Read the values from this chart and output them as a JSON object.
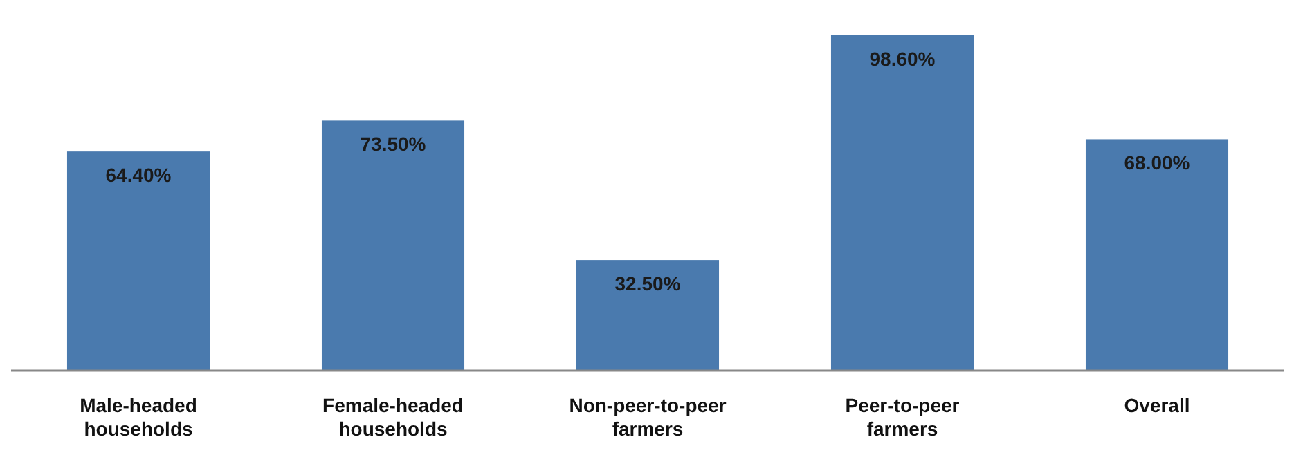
{
  "chart_data": {
    "type": "bar",
    "categories": [
      "Male-headed households",
      "Female-headed households",
      "Non-peer-to-peer farmers",
      "Peer-to-peer farmers",
      "Overall"
    ],
    "values": [
      64.4,
      73.5,
      32.5,
      98.6,
      68.0
    ],
    "value_labels": [
      "64.40%",
      "73.50%",
      "32.50%",
      "98.60%",
      "68.00%"
    ],
    "color": "#4a7aae",
    "ylim": [
      0,
      100
    ]
  }
}
